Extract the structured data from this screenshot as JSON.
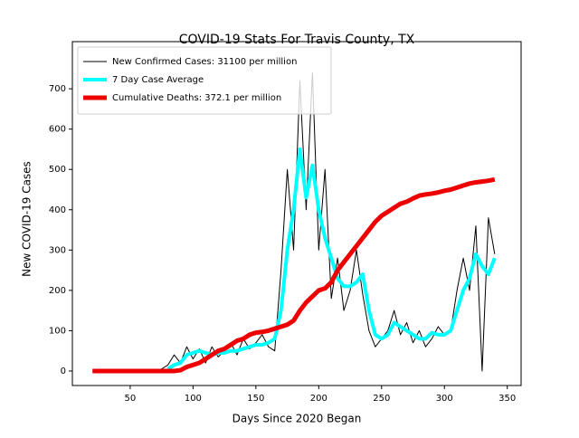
{
  "chart_data": {
    "type": "line",
    "title": "COVID-19 Stats For Travis County, TX",
    "x_label": "Days Since 2020 Began",
    "y_label": "New COVID-19 Cases",
    "x": [
      20,
      25,
      30,
      35,
      40,
      45,
      50,
      55,
      60,
      65,
      70,
      75,
      80,
      85,
      90,
      95,
      100,
      105,
      110,
      115,
      120,
      125,
      130,
      135,
      140,
      145,
      150,
      155,
      160,
      165,
      170,
      175,
      180,
      185,
      190,
      195,
      200,
      205,
      210,
      215,
      220,
      225,
      230,
      235,
      240,
      245,
      250,
      255,
      260,
      265,
      270,
      275,
      280,
      285,
      290,
      295,
      300,
      305,
      310,
      315,
      320,
      325,
      330,
      335,
      340
    ],
    "series": [
      {
        "name": "New Confirmed Cases: 31100 per million",
        "color": "#000000",
        "width": 1,
        "values": [
          0,
          0,
          0,
          0,
          0,
          0,
          0,
          0,
          0,
          0,
          0,
          5,
          15,
          40,
          20,
          60,
          30,
          55,
          20,
          60,
          35,
          50,
          70,
          40,
          80,
          55,
          70,
          90,
          60,
          50,
          250,
          500,
          300,
          720,
          400,
          740,
          300,
          500,
          180,
          280,
          150,
          200,
          300,
          190,
          100,
          60,
          80,
          100,
          150,
          90,
          120,
          70,
          100,
          60,
          80,
          110,
          90,
          100,
          200,
          280,
          200,
          360,
          0,
          380,
          290
        ]
      },
      {
        "name": "7 Day Case Average",
        "color": "#00ffff",
        "width": 4,
        "values": [
          null,
          null,
          null,
          null,
          null,
          null,
          null,
          null,
          null,
          null,
          null,
          null,
          5,
          15,
          20,
          40,
          45,
          50,
          45,
          40,
          45,
          45,
          50,
          50,
          55,
          60,
          65,
          65,
          70,
          80,
          150,
          300,
          400,
          550,
          430,
          510,
          400,
          330,
          280,
          230,
          210,
          210,
          220,
          240,
          150,
          90,
          80,
          90,
          120,
          110,
          100,
          90,
          80,
          80,
          95,
          90,
          90,
          100,
          150,
          200,
          230,
          290,
          260,
          240,
          280
        ]
      },
      {
        "name": "Cumulative Deaths: 372.1 per million",
        "color": "#ee0000",
        "width": 5,
        "values": [
          0,
          0,
          0,
          0,
          0,
          0,
          0,
          0,
          0,
          0,
          0,
          0,
          0,
          0,
          2,
          10,
          15,
          20,
          30,
          40,
          50,
          55,
          65,
          75,
          80,
          90,
          95,
          97,
          100,
          105,
          110,
          115,
          125,
          150,
          170,
          185,
          200,
          205,
          220,
          250,
          270,
          290,
          310,
          330,
          350,
          370,
          385,
          395,
          405,
          415,
          420,
          428,
          435,
          438,
          440,
          443,
          447,
          450,
          455,
          460,
          465,
          468,
          470,
          472,
          475
        ]
      }
    ],
    "xlim": [
      4,
      361
    ],
    "ylim": [
      -36,
      817
    ],
    "xticks": [
      50,
      100,
      150,
      200,
      250,
      300,
      350
    ],
    "yticks": [
      0,
      100,
      200,
      300,
      400,
      500,
      600,
      700
    ],
    "legend": "upper left"
  }
}
